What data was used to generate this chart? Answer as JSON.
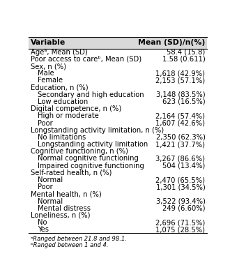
{
  "header_var": "Variable",
  "header_val": "Mean (SD)/n(%)",
  "rows": [
    {
      "label": "Ageᵃ, Mean (SD)",
      "value": "58.4 (15.8)",
      "indent": 0,
      "is_header": false
    },
    {
      "label": "Poor access to careᵇ, Mean (SD)",
      "value": "1.58 (0.611)",
      "indent": 0,
      "is_header": false
    },
    {
      "label": "Sex, n (%)",
      "value": "",
      "indent": 0,
      "is_header": true
    },
    {
      "label": "Male",
      "value": "1,618 (42.9%)",
      "indent": 1,
      "is_header": false
    },
    {
      "label": "Female",
      "value": "2,153 (57.1%)",
      "indent": 1,
      "is_header": false
    },
    {
      "label": "Education, n (%)",
      "value": "",
      "indent": 0,
      "is_header": true
    },
    {
      "label": "Secondary and high education",
      "value": "3,148 (83.5%)",
      "indent": 1,
      "is_header": false
    },
    {
      "label": "Low education",
      "value": "623 (16.5%)",
      "indent": 1,
      "is_header": false
    },
    {
      "label": "Digital competence, n (%)",
      "value": "",
      "indent": 0,
      "is_header": true
    },
    {
      "label": "High or moderate",
      "value": "2,164 (57.4%)",
      "indent": 1,
      "is_header": false
    },
    {
      "label": "Poor",
      "value": "1,607 (42.6%)",
      "indent": 1,
      "is_header": false
    },
    {
      "label": "Longstanding activity limitation, n (%)",
      "value": "",
      "indent": 0,
      "is_header": true
    },
    {
      "label": "No limitations",
      "value": "2,350 (62.3%)",
      "indent": 1,
      "is_header": false
    },
    {
      "label": "Longstanding activity limitation",
      "value": "1,421 (37.7%)",
      "indent": 1,
      "is_header": false
    },
    {
      "label": "Cognitive functioning, n (%)",
      "value": "",
      "indent": 0,
      "is_header": true
    },
    {
      "label": "Normal cognitive functioning",
      "value": "3,267 (86.6%)",
      "indent": 1,
      "is_header": false
    },
    {
      "label": "Impaired cognitive functioning",
      "value": "504 (13.4%)",
      "indent": 1,
      "is_header": false
    },
    {
      "label": "Self-rated health, n (%)",
      "value": "",
      "indent": 0,
      "is_header": true
    },
    {
      "label": "Normal",
      "value": "2,470 (65.5%)",
      "indent": 1,
      "is_header": false
    },
    {
      "label": "Poor",
      "value": "1,301 (34.5%)",
      "indent": 1,
      "is_header": false
    },
    {
      "label": "Mental health, n (%)",
      "value": "",
      "indent": 0,
      "is_header": true
    },
    {
      "label": "Normal",
      "value": "3,522 (93.4%)",
      "indent": 1,
      "is_header": false
    },
    {
      "label": "Mental distress",
      "value": "249 (6.60%)",
      "indent": 1,
      "is_header": false
    },
    {
      "label": "Loneliness, n (%)",
      "value": "",
      "indent": 0,
      "is_header": true
    },
    {
      "label": "No",
      "value": "2,696 (71.5%)",
      "indent": 1,
      "is_header": false
    },
    {
      "label": "Yes",
      "value": "1,075 (28.5%)",
      "indent": 1,
      "is_header": false
    }
  ],
  "footnotes": [
    "ᵃRanged between 21.8 and 98.1.",
    "ᵇRanged between 1 and 4."
  ],
  "bg_color": "#ffffff",
  "header_bg": "#d9d9d9",
  "font_size": 7.2,
  "header_font_size": 7.8,
  "indent_amount": 0.04
}
